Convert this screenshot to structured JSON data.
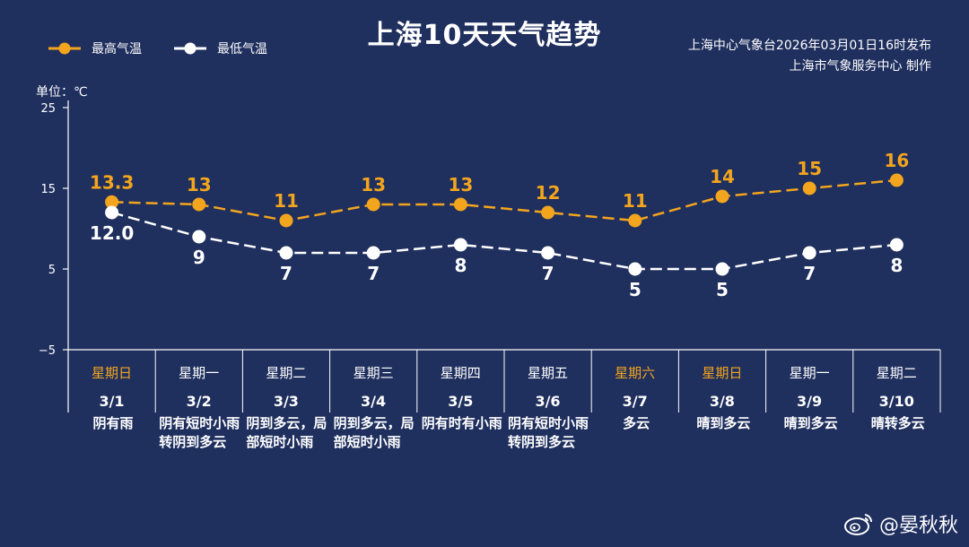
{
  "title": "上海10天天气趋势",
  "legend": {
    "high_label": "最高气温",
    "low_label": "最低气温"
  },
  "publisher": {
    "line1": "上海中心气象台2026年03月01日16时发布",
    "line2": "上海市气象服务中心  制作"
  },
  "unit_label": "单位：℃",
  "footer": {
    "handle": "@晏秋秋"
  },
  "colors": {
    "background": "#1f2f5e",
    "high": "#f3a51e",
    "low": "#ffffff",
    "weekend": "#f3a51e"
  },
  "chart_data": {
    "type": "line",
    "ylim": [
      -5,
      25
    ],
    "yticks": [
      "25",
      "15",
      "5",
      "−5"
    ],
    "ytick_values": [
      25,
      15,
      5,
      -5
    ],
    "x": [
      "3/1",
      "3/2",
      "3/3",
      "3/4",
      "3/5",
      "3/6",
      "3/7",
      "3/8",
      "3/9",
      "3/10"
    ],
    "series": [
      {
        "name": "最高气温",
        "values": [
          13.3,
          13,
          11,
          13,
          13,
          12,
          11,
          14,
          15,
          16
        ],
        "labels": [
          "13.3",
          "13",
          "11",
          "13",
          "13",
          "12",
          "11",
          "14",
          "15",
          "16"
        ]
      },
      {
        "name": "最低气温",
        "values": [
          12.0,
          9,
          7,
          7,
          8,
          7,
          5,
          5,
          7,
          8
        ],
        "labels": [
          "12.0",
          "9",
          "7",
          "7",
          "8",
          "7",
          "5",
          "5",
          "7",
          "8"
        ]
      }
    ]
  },
  "days": [
    {
      "weekday": "星期日",
      "date": "3/1",
      "weather": "阴有雨",
      "weekend": true
    },
    {
      "weekday": "星期一",
      "date": "3/2",
      "weather": "阴有短时小雨转阴到多云",
      "weekend": false
    },
    {
      "weekday": "星期二",
      "date": "3/3",
      "weather": "阴到多云，局部短时小雨",
      "weekend": false
    },
    {
      "weekday": "星期三",
      "date": "3/4",
      "weather": "阴到多云，局部短时小雨",
      "weekend": false
    },
    {
      "weekday": "星期四",
      "date": "3/5",
      "weather": "阴有时有小雨",
      "weekend": false
    },
    {
      "weekday": "星期五",
      "date": "3/6",
      "weather": "阴有短时小雨转阴到多云",
      "weekend": false
    },
    {
      "weekday": "星期六",
      "date": "3/7",
      "weather": "多云",
      "weekend": true
    },
    {
      "weekday": "星期日",
      "date": "3/8",
      "weather": "晴到多云",
      "weekend": true
    },
    {
      "weekday": "星期一",
      "date": "3/9",
      "weather": "晴到多云",
      "weekend": false
    },
    {
      "weekday": "星期二",
      "date": "3/10",
      "weather": "晴转多云",
      "weekend": false
    }
  ]
}
